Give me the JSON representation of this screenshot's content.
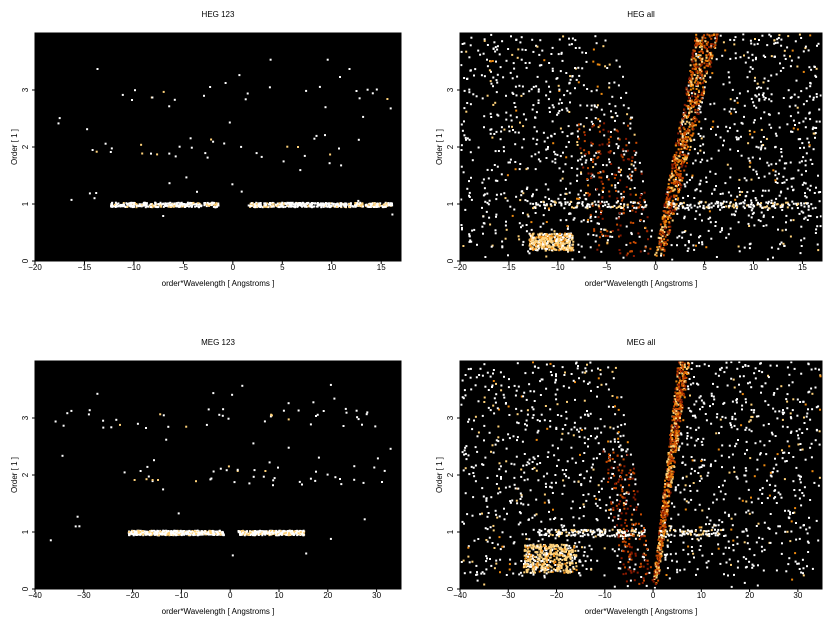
{
  "figure": {
    "background": "#ffffff",
    "plot_background": "#000000",
    "colormap": [
      "#000000",
      "#3a0000",
      "#8b1a00",
      "#c84a00",
      "#ee8a10",
      "#ffd27a",
      "#ffffff"
    ]
  },
  "chart_data": [
    {
      "type": "heatmap",
      "title": "HEG 123",
      "xlabel": "order*Wavelength [ Angstroms ]",
      "ylabel": "Order [ 1 ]",
      "xlim": [
        -20,
        17
      ],
      "ylim": [
        0,
        4
      ],
      "xticks": [
        -20,
        -15,
        -10,
        -5,
        0,
        5,
        10,
        15
      ],
      "yticks": [
        0,
        1,
        2,
        3
      ],
      "bands": [
        {
          "order": 1,
          "x_range": [
            -12.5,
            16
          ],
          "density": 0.5,
          "note": "dense band at order 1"
        },
        {
          "order": 2,
          "x_range": [
            -16,
            15
          ],
          "density": 0.08
        },
        {
          "order": 3,
          "x_range": [
            -17,
            16
          ],
          "density": 0.06
        }
      ],
      "wedge": false
    },
    {
      "type": "heatmap",
      "title": "HEG all",
      "xlabel": "order*Wavelength [ Angstroms ]",
      "ylabel": "Order [ 1 ]",
      "xlim": [
        -20,
        17
      ],
      "ylim": [
        0,
        4
      ],
      "xticks": [
        -20,
        -15,
        -10,
        -5,
        0,
        5,
        10,
        15
      ],
      "yticks": [
        0,
        1,
        2,
        3
      ],
      "bands": [
        {
          "order": 1,
          "x_range": [
            -13,
            16
          ],
          "density": 0.25
        }
      ],
      "wedge": true,
      "wedge_apex": [
        0,
        0.1
      ],
      "empty_wedge_left_at_top": -4.0,
      "bright_streak_right_at_top": 4.5,
      "bright_clump": {
        "x_range": [
          -13,
          -8.5
        ],
        "y_range": [
          0.2,
          0.5
        ]
      }
    },
    {
      "type": "heatmap",
      "title": "MEG 123",
      "xlabel": "order*Wavelength [ Angstroms ]",
      "ylabel": "Order [ 1 ]",
      "xlim": [
        -40,
        35
      ],
      "ylim": [
        0,
        4
      ],
      "xticks": [
        -40,
        -30,
        -20,
        -10,
        0,
        10,
        20,
        30
      ],
      "yticks": [
        0,
        1,
        2,
        3
      ],
      "bands": [
        {
          "order": 1,
          "x_range": [
            -21,
            15
          ],
          "density": 0.5
        },
        {
          "order": 2,
          "x_range": [
            -22,
            30
          ],
          "density": 0.07
        },
        {
          "order": 3,
          "x_range": [
            -36,
            31
          ],
          "density": 0.06
        }
      ],
      "wedge": false
    },
    {
      "type": "heatmap",
      "title": "MEG all",
      "xlabel": "order*Wavelength [ Angstroms ]",
      "ylabel": "Order [ 1 ]",
      "xlim": [
        -40,
        35
      ],
      "ylim": [
        0,
        4
      ],
      "xticks": [
        -40,
        -30,
        -20,
        -10,
        0,
        10,
        20,
        30
      ],
      "yticks": [
        0,
        1,
        2,
        3
      ],
      "bands": [
        {
          "order": 1,
          "x_range": [
            -24,
            15
          ],
          "density": 0.25
        }
      ],
      "wedge": true,
      "wedge_apex": [
        0,
        0.1
      ],
      "empty_wedge_left_at_top": -8.0,
      "bright_streak_right_at_top": 5.5,
      "bright_clump": {
        "x_range": [
          -27,
          -16
        ],
        "y_range": [
          0.3,
          0.8
        ]
      }
    }
  ]
}
